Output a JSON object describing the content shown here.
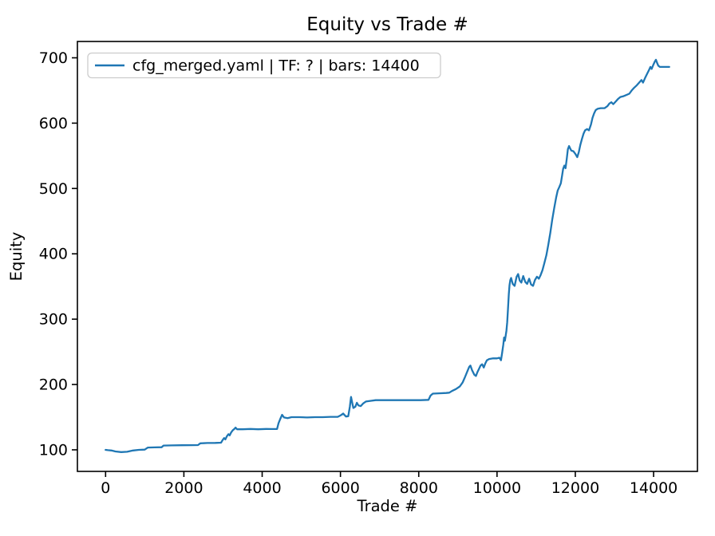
{
  "chart_data": {
    "type": "line",
    "title": "Equity vs Trade #",
    "xlabel": "Trade #",
    "ylabel": "Equity",
    "xlim": [
      -720,
      15120
    ],
    "ylim": [
      67,
      725
    ],
    "x_ticks": [
      0,
      2000,
      4000,
      6000,
      8000,
      10000,
      12000,
      14000
    ],
    "y_ticks": [
      100,
      200,
      300,
      400,
      500,
      600,
      700
    ],
    "grid": false,
    "legend_position": "upper left",
    "colors": {
      "line": "#1f77b4",
      "spine": "#000000",
      "legend_border": "#cccccc",
      "background": "#ffffff"
    },
    "series": [
      {
        "name": "cfg_merged.yaml | TF: ? | bars: 14400",
        "points": [
          [
            0,
            100
          ],
          [
            60,
            99.5
          ],
          [
            150,
            99
          ],
          [
            250,
            97.5
          ],
          [
            400,
            96.5
          ],
          [
            550,
            97
          ],
          [
            700,
            99
          ],
          [
            850,
            100
          ],
          [
            1000,
            100.3
          ],
          [
            1080,
            103.5
          ],
          [
            1250,
            103.8
          ],
          [
            1430,
            104
          ],
          [
            1480,
            106.5
          ],
          [
            1700,
            106.8
          ],
          [
            1950,
            107
          ],
          [
            2200,
            107.2
          ],
          [
            2360,
            107.3
          ],
          [
            2420,
            110
          ],
          [
            2600,
            110.4
          ],
          [
            2800,
            110.6
          ],
          [
            2950,
            111
          ],
          [
            2990,
            115
          ],
          [
            3030,
            118
          ],
          [
            3060,
            116
          ],
          [
            3100,
            121
          ],
          [
            3140,
            124
          ],
          [
            3170,
            122
          ],
          [
            3210,
            127
          ],
          [
            3250,
            130
          ],
          [
            3290,
            132
          ],
          [
            3320,
            134
          ],
          [
            3360,
            131.5
          ],
          [
            3500,
            131.5
          ],
          [
            3700,
            132
          ],
          [
            3900,
            131.5
          ],
          [
            4100,
            132
          ],
          [
            4250,
            131.8
          ],
          [
            4380,
            132
          ],
          [
            4420,
            141
          ],
          [
            4460,
            147
          ],
          [
            4510,
            153.5
          ],
          [
            4560,
            149.5
          ],
          [
            4650,
            148.5
          ],
          [
            4750,
            150
          ],
          [
            4950,
            150
          ],
          [
            5150,
            149.5
          ],
          [
            5350,
            150
          ],
          [
            5550,
            150
          ],
          [
            5750,
            150.5
          ],
          [
            5930,
            150.5
          ],
          [
            6010,
            153
          ],
          [
            6070,
            155.5
          ],
          [
            6140,
            151
          ],
          [
            6200,
            151.5
          ],
          [
            6240,
            166
          ],
          [
            6270,
            181
          ],
          [
            6300,
            172
          ],
          [
            6330,
            164
          ],
          [
            6380,
            166
          ],
          [
            6420,
            172
          ],
          [
            6460,
            168
          ],
          [
            6520,
            167
          ],
          [
            6580,
            171
          ],
          [
            6650,
            174
          ],
          [
            6780,
            175
          ],
          [
            6900,
            176
          ],
          [
            7150,
            176
          ],
          [
            7450,
            176
          ],
          [
            7750,
            176
          ],
          [
            8050,
            176
          ],
          [
            8250,
            176.5
          ],
          [
            8300,
            183
          ],
          [
            8360,
            186
          ],
          [
            8520,
            186.5
          ],
          [
            8700,
            187
          ],
          [
            8780,
            187.5
          ],
          [
            8850,
            190
          ],
          [
            8950,
            193
          ],
          [
            9050,
            197
          ],
          [
            9120,
            203
          ],
          [
            9180,
            211
          ],
          [
            9240,
            220
          ],
          [
            9290,
            227
          ],
          [
            9320,
            229
          ],
          [
            9360,
            222
          ],
          [
            9420,
            215
          ],
          [
            9460,
            213
          ],
          [
            9500,
            219
          ],
          [
            9540,
            224
          ],
          [
            9580,
            229
          ],
          [
            9620,
            231
          ],
          [
            9660,
            226
          ],
          [
            9700,
            232
          ],
          [
            9740,
            237
          ],
          [
            9800,
            239
          ],
          [
            9900,
            240
          ],
          [
            10000,
            240
          ],
          [
            10060,
            241
          ],
          [
            10100,
            237
          ],
          [
            10130,
            248
          ],
          [
            10160,
            261
          ],
          [
            10180,
            272
          ],
          [
            10200,
            267
          ],
          [
            10220,
            274
          ],
          [
            10240,
            282
          ],
          [
            10260,
            295
          ],
          [
            10280,
            316
          ],
          [
            10300,
            338
          ],
          [
            10320,
            352
          ],
          [
            10340,
            360
          ],
          [
            10360,
            363
          ],
          [
            10400,
            354
          ],
          [
            10450,
            351
          ],
          [
            10500,
            365
          ],
          [
            10540,
            369
          ],
          [
            10580,
            359
          ],
          [
            10620,
            356
          ],
          [
            10670,
            366
          ],
          [
            10720,
            357
          ],
          [
            10770,
            354
          ],
          [
            10820,
            362
          ],
          [
            10870,
            353
          ],
          [
            10920,
            351
          ],
          [
            10970,
            360
          ],
          [
            11020,
            365
          ],
          [
            11070,
            362
          ],
          [
            11110,
            367
          ],
          [
            11160,
            375
          ],
          [
            11210,
            386
          ],
          [
            11260,
            398
          ],
          [
            11310,
            414
          ],
          [
            11360,
            432
          ],
          [
            11410,
            452
          ],
          [
            11460,
            470
          ],
          [
            11510,
            486
          ],
          [
            11550,
            497
          ],
          [
            11590,
            502
          ],
          [
            11630,
            508
          ],
          [
            11660,
            519
          ],
          [
            11690,
            530
          ],
          [
            11720,
            535
          ],
          [
            11750,
            531
          ],
          [
            11780,
            545
          ],
          [
            11810,
            560
          ],
          [
            11840,
            565
          ],
          [
            11870,
            561
          ],
          [
            11900,
            558
          ],
          [
            11950,
            557
          ],
          [
            12000,
            553
          ],
          [
            12050,
            548
          ],
          [
            12090,
            556
          ],
          [
            12130,
            567
          ],
          [
            12170,
            576
          ],
          [
            12210,
            584
          ],
          [
            12250,
            589
          ],
          [
            12300,
            591
          ],
          [
            12350,
            589
          ],
          [
            12400,
            598
          ],
          [
            12440,
            608
          ],
          [
            12480,
            615
          ],
          [
            12520,
            620
          ],
          [
            12570,
            622
          ],
          [
            12650,
            623
          ],
          [
            12750,
            623
          ],
          [
            12820,
            626
          ],
          [
            12870,
            630
          ],
          [
            12920,
            632
          ],
          [
            12970,
            629
          ],
          [
            13030,
            633
          ],
          [
            13090,
            637
          ],
          [
            13150,
            640
          ],
          [
            13220,
            641
          ],
          [
            13300,
            643
          ],
          [
            13380,
            645
          ],
          [
            13440,
            650
          ],
          [
            13500,
            654
          ],
          [
            13570,
            658
          ],
          [
            13630,
            662
          ],
          [
            13690,
            666
          ],
          [
            13730,
            662
          ],
          [
            13780,
            669
          ],
          [
            13830,
            675
          ],
          [
            13880,
            681
          ],
          [
            13920,
            686
          ],
          [
            13950,
            683
          ],
          [
            13990,
            689
          ],
          [
            14030,
            694
          ],
          [
            14060,
            697
          ],
          [
            14090,
            692
          ],
          [
            14120,
            688
          ],
          [
            14160,
            686
          ],
          [
            14250,
            686
          ],
          [
            14350,
            686
          ],
          [
            14400,
            686
          ]
        ]
      }
    ]
  }
}
